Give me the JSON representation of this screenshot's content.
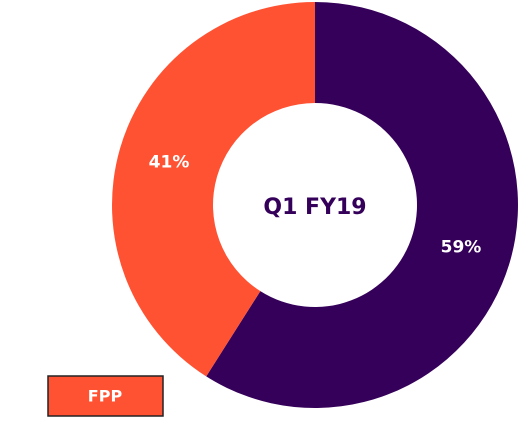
{
  "chart_data": {
    "type": "donut",
    "center_label": "Q1 FY19",
    "categories": [
      null,
      "FPP"
    ],
    "values": [
      59,
      41
    ],
    "value_labels": [
      "59%",
      "41%"
    ],
    "colors": [
      "#35005a",
      "#ff5233"
    ]
  }
}
